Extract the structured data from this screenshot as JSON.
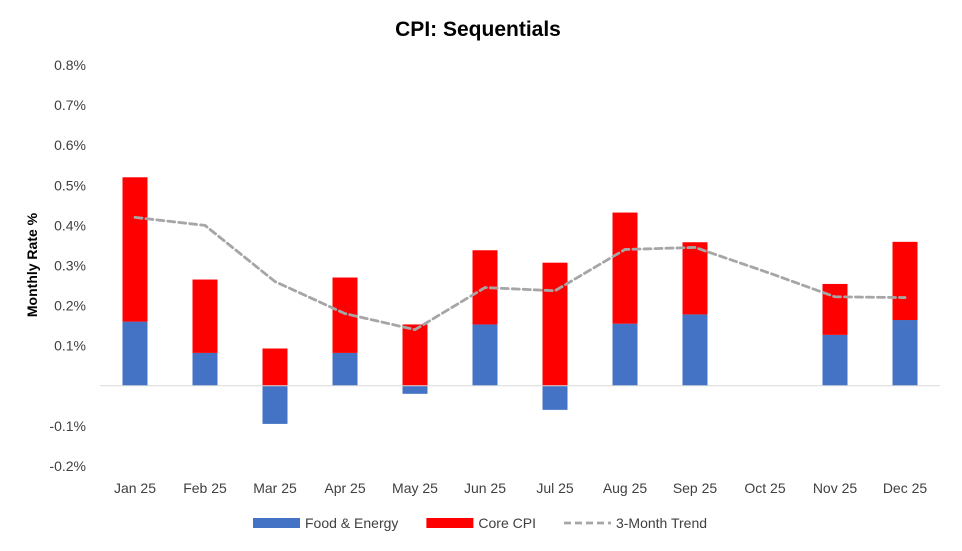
{
  "chart_data": {
    "type": "bar",
    "stacked": true,
    "title": "CPI: Sequentials",
    "xlabel": "",
    "ylabel": "Monthly Rate %",
    "categories": [
      "Jan 25",
      "Feb 25",
      "Mar 25",
      "Apr 25",
      "May 25",
      "Jun 25",
      "Jul 25",
      "Aug 25",
      "Sep 25",
      "Oct 25",
      "Nov 25",
      "Dec 25"
    ],
    "series": [
      {
        "name": "Food & Energy",
        "kind": "bar",
        "color": "#4472C4",
        "values": [
          0.16,
          0.082,
          -0.095,
          0.082,
          -0.02,
          0.153,
          -0.06,
          0.155,
          0.178,
          null,
          0.127,
          0.164
        ]
      },
      {
        "name": "Core CPI",
        "kind": "bar",
        "color": "#FF0000",
        "values": [
          0.36,
          0.183,
          0.093,
          0.188,
          0.153,
          0.185,
          0.307,
          0.277,
          0.18,
          null,
          0.127,
          0.195
        ]
      },
      {
        "name": "3-Month Trend",
        "kind": "line",
        "style": "dashed",
        "color": "#A6A6A6",
        "values": [
          0.42,
          0.4,
          0.26,
          0.18,
          0.14,
          0.245,
          0.237,
          0.34,
          0.345,
          0.285,
          0.222,
          0.22
        ]
      }
    ],
    "yticks": [
      {
        "value": 0.8,
        "label": "0.8%"
      },
      {
        "value": 0.7,
        "label": "0.7%"
      },
      {
        "value": 0.6,
        "label": "0.6%"
      },
      {
        "value": 0.5,
        "label": "0.5%"
      },
      {
        "value": 0.4,
        "label": "0.4%"
      },
      {
        "value": 0.3,
        "label": "0.3%"
      },
      {
        "value": 0.2,
        "label": "0.2%"
      },
      {
        "value": 0.1,
        "label": "0.1%"
      },
      {
        "value": -0.1,
        "label": "-0.1%"
      },
      {
        "value": -0.2,
        "label": "-0.2%"
      }
    ],
    "ylim": [
      -0.2,
      0.8
    ],
    "grid": false,
    "legend": "bottom"
  }
}
